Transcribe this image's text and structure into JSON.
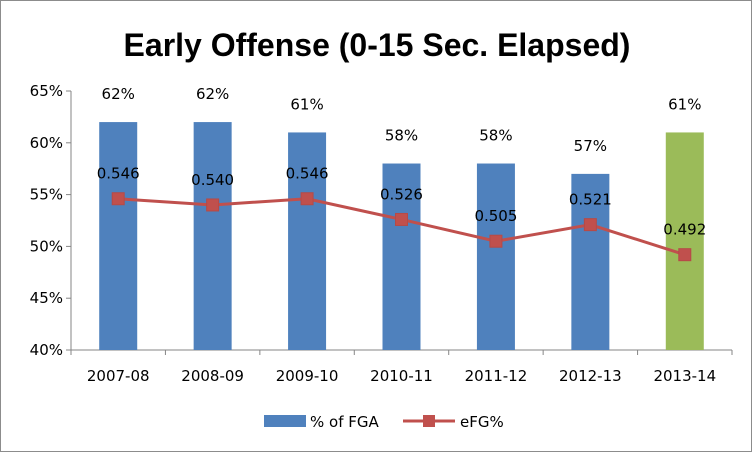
{
  "chart_data": {
    "type": "bar",
    "title": "Early Offense (0-15 Sec. Elapsed)",
    "categories": [
      "2007-08",
      "2008-09",
      "2009-10",
      "2010-11",
      "2011-12",
      "2012-13",
      "2013-14"
    ],
    "ylim": [
      40,
      65
    ],
    "yticks": [
      "40%",
      "45%",
      "50%",
      "55%",
      "60%",
      "65%"
    ],
    "ytick_values": [
      40,
      45,
      50,
      55,
      60,
      65
    ],
    "grid": false,
    "legend_position": "bottom",
    "series": [
      {
        "name": "% of FGA",
        "type": "bar",
        "values": [
          62,
          62,
          61,
          58,
          58,
          57,
          61
        ],
        "labels": [
          "62%",
          "62%",
          "61%",
          "58%",
          "58%",
          "57%",
          "61%"
        ],
        "color": "#4F81BD",
        "highlight_color": "#9BBB59",
        "highlight_index": 6
      },
      {
        "name": "eFG%",
        "type": "line",
        "values": [
          0.546,
          0.54,
          0.546,
          0.526,
          0.505,
          0.521,
          0.492
        ],
        "labels": [
          "0.546",
          "0.540",
          "0.546",
          "0.526",
          "0.505",
          "0.521",
          "0.492"
        ],
        "color": "#C0504D"
      }
    ]
  }
}
